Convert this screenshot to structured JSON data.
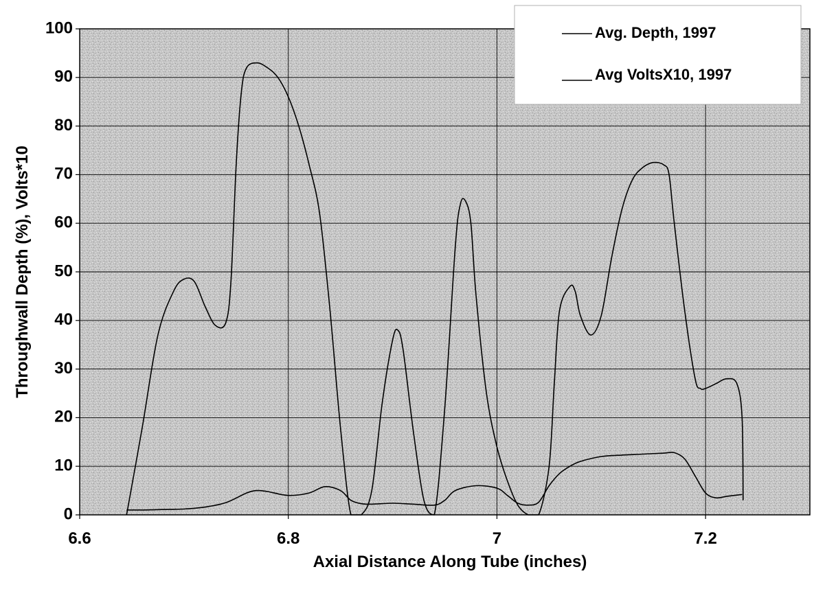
{
  "chart_data": {
    "type": "line",
    "title": "",
    "xlabel": "Axial Distance Along Tube (inches)",
    "ylabel": "Throughwall Depth (%), Volts*10",
    "xlim": [
      6.6,
      7.3
    ],
    "ylim": [
      0,
      100
    ],
    "x_ticks": [
      "6.6",
      "6.8",
      "7",
      "7.2"
    ],
    "x_tick_values": [
      6.6,
      6.8,
      7.0,
      7.2
    ],
    "y_ticks": [
      "0",
      "10",
      "20",
      "30",
      "40",
      "50",
      "60",
      "70",
      "80",
      "90",
      "100"
    ],
    "y_tick_values": [
      0,
      10,
      20,
      30,
      40,
      50,
      60,
      70,
      80,
      90,
      100
    ],
    "grid": true,
    "legend_position": "top-right",
    "series": [
      {
        "name": "Avg. Depth, 1997",
        "x": [
          6.645,
          6.66,
          6.675,
          6.69,
          6.7,
          6.71,
          6.72,
          6.73,
          6.74,
          6.745,
          6.75,
          6.755,
          6.76,
          6.77,
          6.78,
          6.79,
          6.8,
          6.81,
          6.82,
          6.83,
          6.84,
          6.85,
          6.86,
          6.87,
          6.88,
          6.89,
          6.9,
          6.905,
          6.91,
          6.92,
          6.93,
          6.94,
          6.95,
          6.96,
          6.965,
          6.97,
          6.975,
          6.98,
          6.99,
          7.0,
          7.01,
          7.02,
          7.03,
          7.04,
          7.05,
          7.055,
          7.06,
          7.07,
          7.075,
          7.08,
          7.09,
          7.1,
          7.11,
          7.12,
          7.13,
          7.14,
          7.15,
          7.16,
          7.165,
          7.17,
          7.18,
          7.19,
          7.195,
          7.2,
          7.21,
          7.22,
          7.23,
          7.235,
          7.236
        ],
        "values": [
          0,
          18,
          37,
          46,
          48.5,
          48,
          43,
          39,
          39.5,
          48,
          72,
          87,
          92,
          93,
          92,
          90,
          86,
          80,
          72,
          62,
          42,
          18,
          0,
          0,
          5,
          23,
          36,
          38,
          34,
          17,
          3,
          0,
          22,
          55,
          64,
          64.5,
          60,
          45,
          25,
          14,
          7,
          2,
          0,
          0,
          10,
          27,
          42,
          47,
          46,
          41,
          37,
          41,
          53,
          63,
          69,
          71.5,
          72.5,
          72,
          70,
          60,
          42,
          28,
          26,
          26,
          27,
          28,
          27,
          20,
          3
        ]
      },
      {
        "name": "Avg VoltsX10, 1997",
        "x": [
          6.645,
          6.66,
          6.68,
          6.7,
          6.72,
          6.74,
          6.76,
          6.77,
          6.78,
          6.8,
          6.82,
          6.835,
          6.85,
          6.86,
          6.87,
          6.88,
          6.9,
          6.92,
          6.94,
          6.95,
          6.96,
          6.98,
          7.0,
          7.01,
          7.02,
          7.03,
          7.04,
          7.05,
          7.06,
          7.07,
          7.08,
          7.1,
          7.12,
          7.14,
          7.16,
          7.17,
          7.18,
          7.19,
          7.2,
          7.21,
          7.22,
          7.235
        ],
        "values": [
          1,
          1,
          1.1,
          1.2,
          1.6,
          2.5,
          4.5,
          5,
          4.8,
          4,
          4.5,
          5.8,
          5,
          3,
          2.3,
          2.2,
          2.4,
          2.2,
          2,
          3,
          5,
          6,
          5.5,
          4,
          2.4,
          2,
          2.6,
          6,
          8.5,
          10,
          11,
          12,
          12.3,
          12.5,
          12.7,
          12.8,
          11.5,
          8,
          4.5,
          3.5,
          3.8,
          4.2
        ]
      }
    ]
  }
}
